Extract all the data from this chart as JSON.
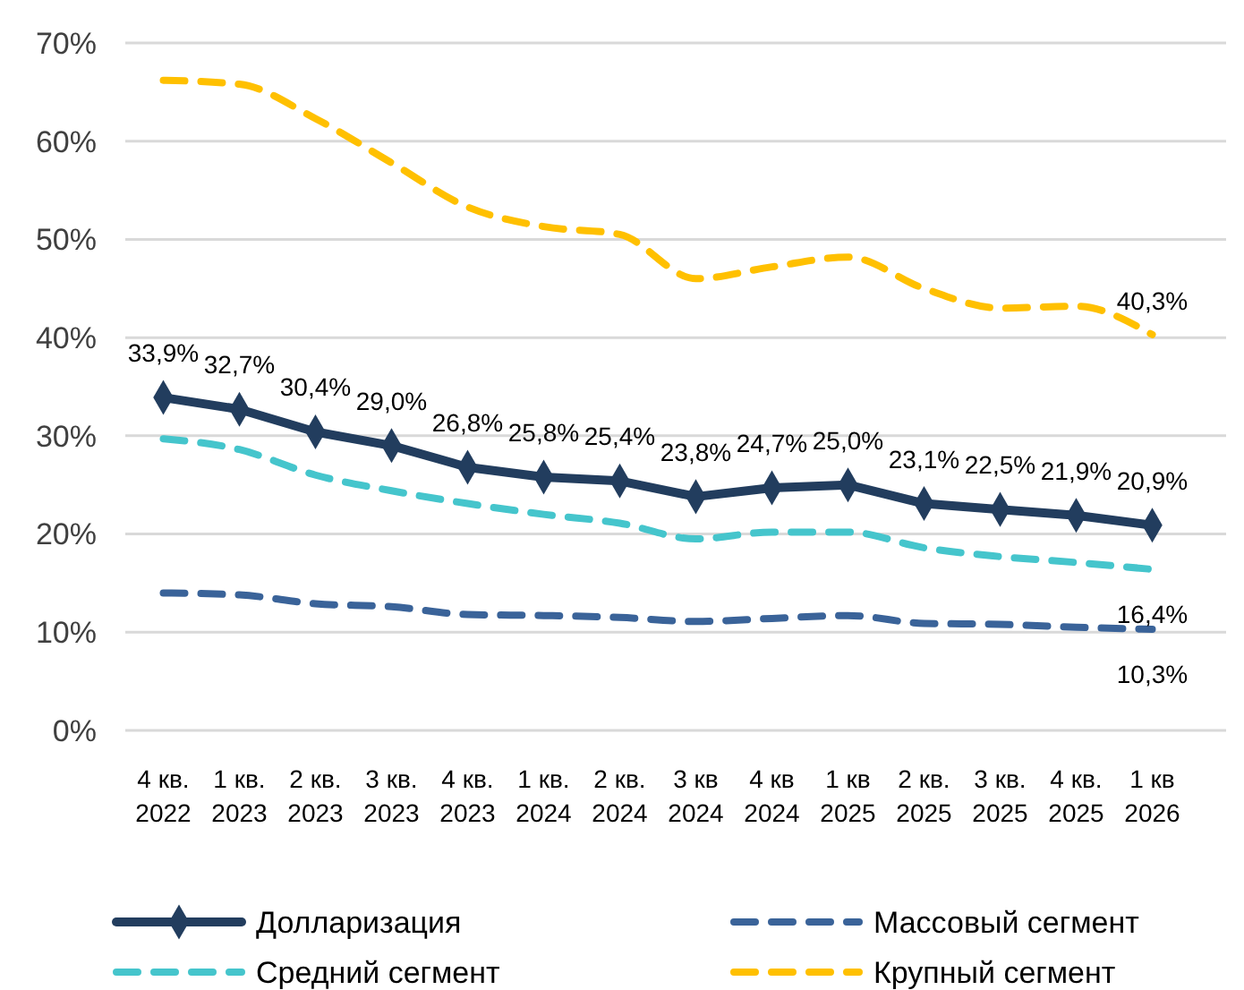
{
  "chart_data": {
    "type": "line",
    "categories": [
      "4 кв. 2022",
      "1 кв. 2023",
      "2 кв. 2023",
      "3 кв. 2023",
      "4 кв. 2023",
      "1 кв. 2024",
      "2 кв. 2024",
      "3 кв 2024",
      "4 кв 2024",
      "1 кв 2025",
      "2 кв. 2025",
      "3 кв. 2025",
      "4 кв. 2025",
      "1 кв 2026"
    ],
    "series": [
      {
        "name": "Долларизация",
        "color": "#223d5e",
        "marker": "diamond",
        "line_style": "solid",
        "values": [
          33.9,
          32.7,
          30.4,
          29.0,
          26.8,
          25.8,
          25.4,
          23.8,
          24.7,
          25.0,
          23.1,
          22.5,
          21.9,
          20.9
        ],
        "value_labels": [
          "33,9%",
          "32,7%",
          "30,4%",
          "29,0%",
          "26,8%",
          "25,8%",
          "25,4%",
          "23,8%",
          "24,7%",
          "25,0%",
          "23,1%",
          "22,5%",
          "21,9%",
          "20,9%"
        ]
      },
      {
        "name": "Массовый сегмент",
        "color": "#3a6399",
        "marker": "none",
        "line_style": "dashed",
        "values": [
          14.0,
          13.8,
          12.9,
          12.6,
          11.8,
          11.7,
          11.5,
          11.1,
          11.4,
          11.7,
          10.9,
          10.8,
          10.5,
          10.3
        ],
        "value_labels": [
          null,
          null,
          null,
          null,
          null,
          null,
          null,
          null,
          null,
          null,
          null,
          null,
          null,
          "10,3%"
        ]
      },
      {
        "name": "Средний сегмент",
        "color": "#45c5cc",
        "marker": "none",
        "line_style": "dashed",
        "values": [
          29.7,
          28.6,
          26.0,
          24.4,
          23.1,
          22.0,
          21.1,
          19.5,
          20.2,
          20.2,
          18.6,
          17.7,
          17.1,
          16.4
        ],
        "value_labels": [
          null,
          null,
          null,
          null,
          null,
          null,
          null,
          null,
          null,
          null,
          null,
          null,
          null,
          "16,4%"
        ]
      },
      {
        "name": "Крупный сегмент",
        "color": "#ffc000",
        "marker": "none",
        "line_style": "dashed",
        "values": [
          66.2,
          65.8,
          62.3,
          57.8,
          53.3,
          51.3,
          50.5,
          46.0,
          47.2,
          48.2,
          45.0,
          43.0,
          43.2,
          40.3
        ],
        "value_labels": [
          null,
          null,
          null,
          null,
          null,
          null,
          null,
          null,
          null,
          null,
          null,
          null,
          null,
          "40,3%"
        ]
      }
    ],
    "ylim": [
      0,
      70
    ],
    "yticks": [
      {
        "value": 0,
        "label": "0%"
      },
      {
        "value": 10,
        "label": "10%"
      },
      {
        "value": 20,
        "label": "20%"
      },
      {
        "value": 30,
        "label": "30%"
      },
      {
        "value": 40,
        "label": "40%"
      },
      {
        "value": 50,
        "label": "50%"
      },
      {
        "value": 60,
        "label": "60%"
      },
      {
        "value": 70,
        "label": "70%"
      }
    ],
    "grid": "y",
    "legend": "bottom"
  }
}
